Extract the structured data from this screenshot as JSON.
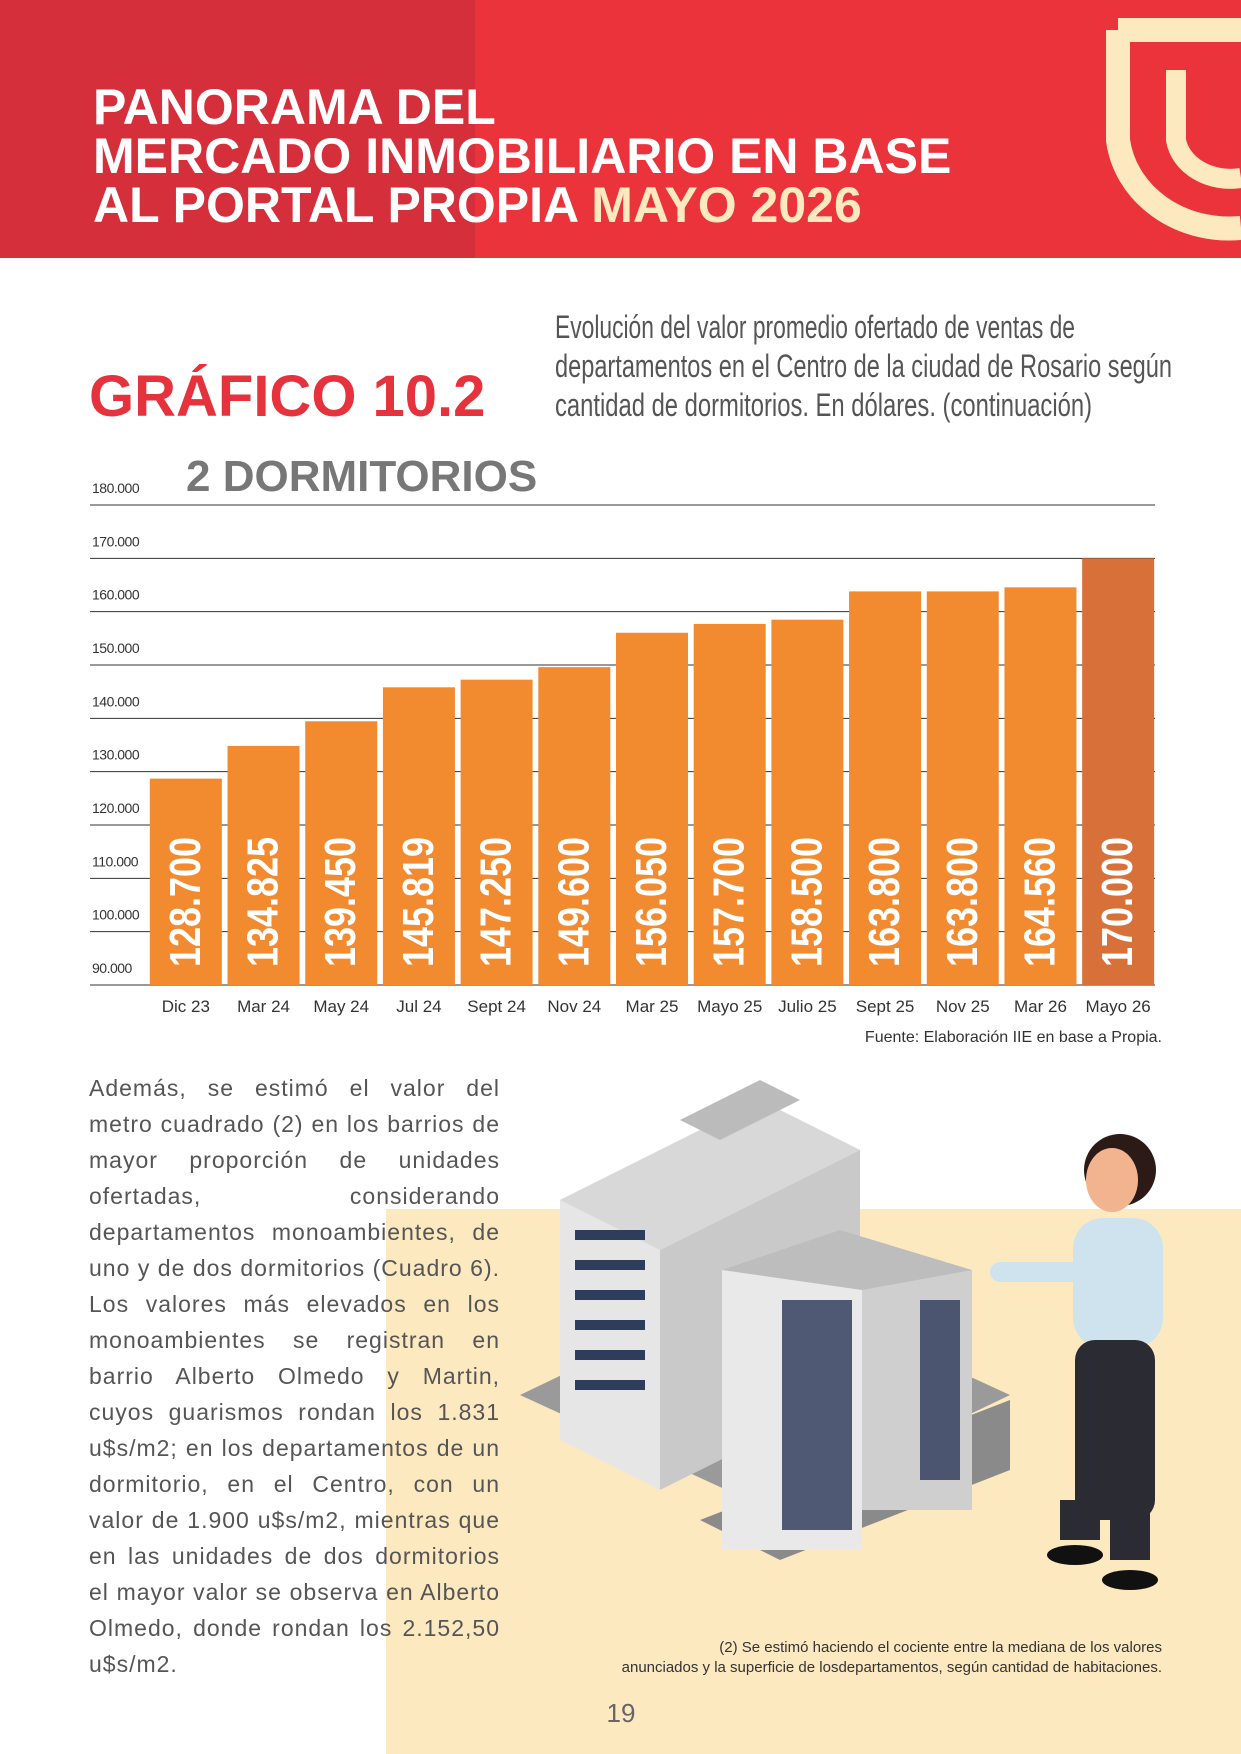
{
  "header": {
    "title_lines": [
      "PANORAMA DEL",
      "MERCADO INMOBILIARIO EN BASE",
      "AL PORTAL PROPIA"
    ],
    "highlight": "MAYO 2026"
  },
  "chart_data": {
    "type": "bar",
    "label": "GRÁFICO 10.2",
    "subtitle_lines": [
      "Evolución del valor promedio ofertado de ventas de",
      "departamentos en el Centro de la ciudad de Rosario según",
      "cantidad de dormitorios. En dólares. (continuación)"
    ],
    "title": "2 DORMITORIOS",
    "categories": [
      "Dic 23",
      "Mar 24",
      "May 24",
      "Jul 24",
      "Sept 24",
      "Nov 24",
      "Mar 25",
      "Mayo 25",
      "Julio 25",
      "Sept 25",
      "Nov 25",
      "Mar 26",
      "Mayo 26"
    ],
    "values": [
      128700,
      134825,
      139450,
      145819,
      147250,
      149600,
      156050,
      157700,
      158500,
      163800,
      163800,
      164560,
      170000
    ],
    "value_labels": [
      "128.700",
      "134.825",
      "139.450",
      "145.819",
      "147.250",
      "149.600",
      "156.050",
      "157.700",
      "158.500",
      "163.800",
      "163.800",
      "164.560",
      "170.000"
    ],
    "colors": [
      "#f28a30",
      "#f28a30",
      "#f28a30",
      "#f28a30",
      "#f28a30",
      "#f28a30",
      "#f28a30",
      "#f28a30",
      "#f28a30",
      "#f28a30",
      "#f28a30",
      "#f28a30",
      "#d8703a"
    ],
    "ylim": [
      90000,
      180000
    ],
    "yticks": [
      {
        "value": 90000,
        "label": "90.000"
      },
      {
        "value": 100000,
        "label": "100.000"
      },
      {
        "value": 110000,
        "label": "110.000"
      },
      {
        "value": 120000,
        "label": "120.000"
      },
      {
        "value": 130000,
        "label": "130.000"
      },
      {
        "value": 140000,
        "label": "140.000"
      },
      {
        "value": 150000,
        "label": "150.000"
      },
      {
        "value": 160000,
        "label": "160.000"
      },
      {
        "value": 170000,
        "label": "170.000"
      },
      {
        "value": 180000,
        "label": "180.000"
      }
    ],
    "grid": true,
    "source": "Fuente: Elaboración IIE en base a Propia."
  },
  "body": "Además, se estimó el valor del metro cuadrado (2) en los barrios de mayor proporción de unidades ofertadas, considerando departamentos monoambientes, de uno y de dos dormitorios (Cuadro 6). Los valores más elevados en los monoambientes se registran en barrio Alberto Olmedo y Martin, cuyos guarismos rondan los 1.831 u$s/m2; en los departamentos de un dormitorio, en el Centro, con un valor de 1.900 u$s/m2, mientras que en las unidades de dos dormitorios el mayor valor se observa en Alberto Olmedo, donde rondan los 2.152,50 u$s/m2.",
  "footnote_lines": [
    "(2) Se estimó haciendo el cociente entre la mediana de los valores",
    "anunciados y la superficie de losdepartamentos, según cantidad de habitaciones."
  ],
  "page_number": "19"
}
